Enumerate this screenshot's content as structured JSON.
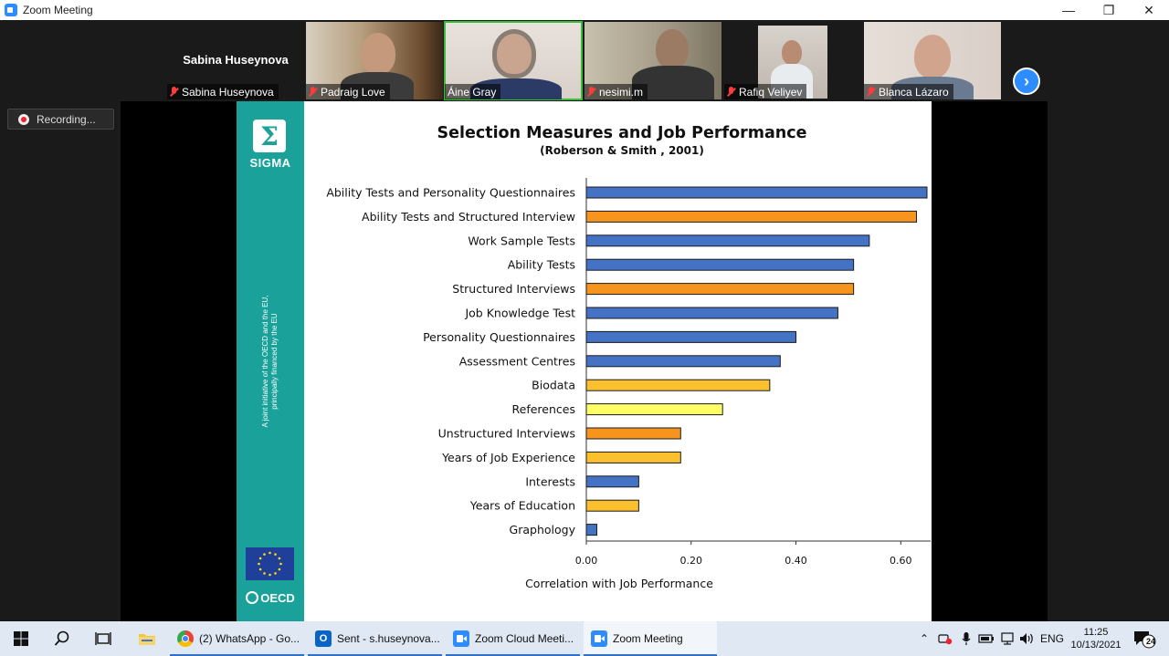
{
  "window": {
    "title": "Zoom Meeting"
  },
  "gallery": {
    "active_speaker_name": "Sabina Huseynova",
    "participants": [
      {
        "name": "Sabina Huseynova",
        "muted": true
      },
      {
        "name": "Padraig Love",
        "muted": true
      },
      {
        "name": "Áine Gray",
        "muted": false
      },
      {
        "name": "nesimi.m",
        "muted": true
      },
      {
        "name": "Rafiq Veliyev",
        "muted": true
      },
      {
        "name": "Blanca Lázaro",
        "muted": true
      }
    ]
  },
  "recording": {
    "label": "Recording..."
  },
  "slide": {
    "sidebar": {
      "logo_text": "SIGMA",
      "vertical_text_1": "A joint initiative of the OECD and the EU,",
      "vertical_text_2": "principally financed by the EU",
      "oecd_text": "OECD"
    }
  },
  "chart_data": {
    "type": "bar",
    "orientation": "horizontal",
    "title": "Selection Measures and Job Performance",
    "subtitle": "(Roberson & Smith , 2001)",
    "xlabel": "Correlation  with Job Performance",
    "xlim": [
      0,
      0.65
    ],
    "x_ticks": [
      "0.00",
      "0.20",
      "0.40",
      "0.60"
    ],
    "categories": [
      "Ability Tests and Personality Questionnaires",
      "Ability Tests and Structured Interview",
      "Work Sample Tests",
      "Ability Tests",
      "Structured Interviews",
      "Job Knowledge Test",
      "Personality Questionnaires",
      "Assessment Centres",
      "Biodata",
      "References",
      "Unstructured Interviews",
      "Years of Job Experience",
      "Interests",
      "Years of Education",
      "Graphology"
    ],
    "values": [
      0.65,
      0.63,
      0.54,
      0.51,
      0.51,
      0.48,
      0.4,
      0.37,
      0.35,
      0.26,
      0.18,
      0.18,
      0.1,
      0.1,
      0.02
    ],
    "colors": [
      "#4472c4",
      "#f7941d",
      "#4472c4",
      "#4472c4",
      "#f7941d",
      "#4472c4",
      "#4472c4",
      "#4472c4",
      "#fbc02d",
      "#ffff66",
      "#f7941d",
      "#fbc02d",
      "#4472c4",
      "#fbc02d",
      "#4472c4"
    ]
  },
  "taskbar": {
    "apps": [
      {
        "label": "(2) WhatsApp - Go...",
        "icon": "chrome-icon"
      },
      {
        "label": "Sent - s.huseynova...",
        "icon": "outlook-icon"
      },
      {
        "label": "Zoom Cloud Meeti...",
        "icon": "zoom-icon"
      },
      {
        "label": "Zoom Meeting",
        "icon": "zoom-icon"
      }
    ],
    "language": "ENG",
    "time": "11:25",
    "date": "10/13/2021",
    "notification_count": "24"
  }
}
